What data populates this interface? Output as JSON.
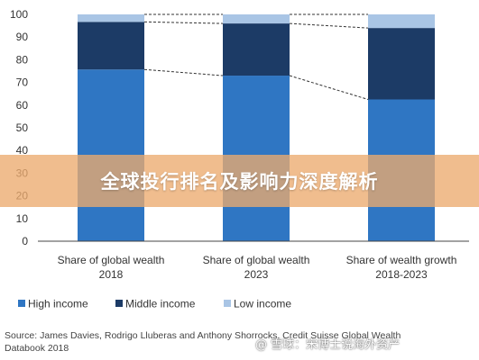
{
  "colors": {
    "high_income": "#2f76c3",
    "middle_income": "#1c3b66",
    "low_income": "#a9c5e5",
    "axis": "#444444",
    "connector": "#333333"
  },
  "overlay": {
    "banner_text": "全球投行排名及影响力深度解析",
    "watermark_text": "@ 雪球：宋博士说海外资产"
  },
  "source_lines": [
    "Source: James Davies, Rodrigo Lluberas and Anthony Shorrocks, Credit Suisse Global Wealth",
    "Databook 2018"
  ],
  "chart_data": {
    "type": "bar",
    "stacked": true,
    "categories": [
      [
        "Share of global wealth",
        "2018"
      ],
      [
        "Share of global wealth",
        "2023"
      ],
      [
        "Share of wealth growth",
        "2018-2023"
      ]
    ],
    "series": [
      {
        "name": "High income",
        "values": [
          75.7,
          73,
          62.5
        ]
      },
      {
        "name": "Middle income",
        "values": [
          21,
          23,
          31.5
        ]
      },
      {
        "name": "Low income",
        "values": [
          3.3,
          4,
          6
        ]
      }
    ],
    "ylim": [
      0,
      100
    ],
    "yticks": [
      "0",
      "10",
      "20",
      "30",
      "40",
      "50",
      "60",
      "70",
      "80",
      "90",
      "100"
    ],
    "connectors": true,
    "legend_position": "bottom",
    "grid": false,
    "xlabel": "",
    "ylabel": ""
  }
}
